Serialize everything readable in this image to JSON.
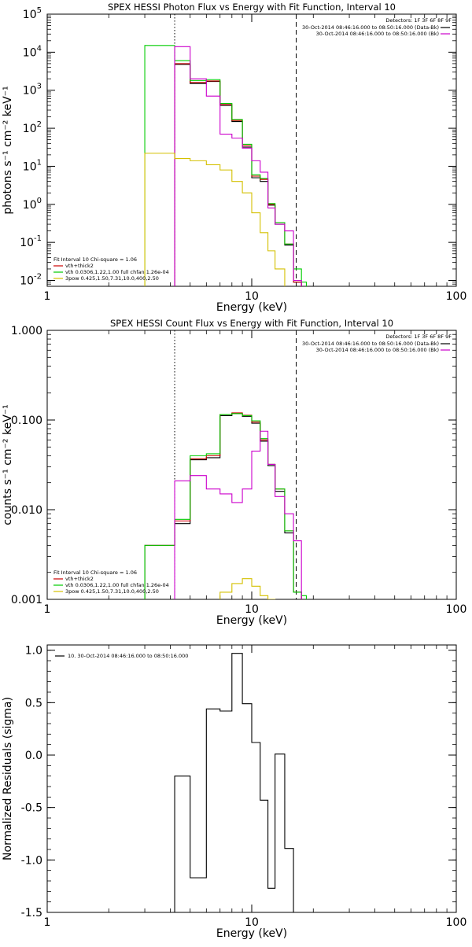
{
  "chart_data": [
    {
      "type": "line",
      "title": "SPEX HESSI Photon Flux vs Energy with Fit Function, Interval 10",
      "xlabel": "Energy (keV)",
      "ylabel": "photons s⁻¹ cm⁻² keV⁻¹",
      "xscale": "log",
      "yscale": "log",
      "xlim": [
        1,
        100
      ],
      "ylim": [
        0.007,
        100000
      ],
      "xticks": [
        {
          "v": 1,
          "label": "1"
        },
        {
          "v": 10,
          "label": "10"
        },
        {
          "v": 100,
          "label": "100"
        }
      ],
      "yticks": [
        {
          "v": 0.01,
          "base": "10",
          "exp": "-2"
        },
        {
          "v": 0.1,
          "base": "10",
          "exp": "-1"
        },
        {
          "v": 1,
          "base": "10",
          "exp": "0"
        },
        {
          "v": 10,
          "base": "10",
          "exp": "1"
        },
        {
          "v": 100,
          "base": "10",
          "exp": "2"
        },
        {
          "v": 1000,
          "base": "10",
          "exp": "3"
        },
        {
          "v": 10000,
          "base": "10",
          "exp": "4"
        },
        {
          "v": 100000,
          "base": "10",
          "exp": "5"
        }
      ],
      "vlines": [
        {
          "x": 4.2,
          "style": "dotted"
        },
        {
          "x": 16.5,
          "style": "dashed"
        }
      ],
      "detectors": "Detectors: 1F 3F 6F 8F 9F",
      "legend_top": [
        {
          "text": "30-Oct-2014 08:46:16.000 to 08:50:16.000 (Data-Bk)",
          "color": "#000000"
        },
        {
          "text": "30-Oct-2014 08:46:16.000 to 08:50:16.000 (Bk)",
          "color": "#cc00cc"
        }
      ],
      "fit_header": "Fit Interval 10    Chi-square = 1.06",
      "legend_bottom": [
        {
          "text": "vth+thick2",
          "color": "#cc0000"
        },
        {
          "text": "vth 0.0306,1.22,1.00   full chfan 1.26e-04",
          "color": "#00cc00"
        },
        {
          "text": "3pow 0.425,1.50,7.31,10.0,400,2.50",
          "color": "#d4c000"
        }
      ],
      "series": [
        {
          "color": "#000000",
          "edges": [
            4.2,
            5.0,
            6.0,
            7.0,
            8.0,
            9.0,
            10.0,
            11.0,
            12.0,
            13.0,
            14.5,
            16.0,
            17.5
          ],
          "values": [
            4800,
            1500,
            1700,
            400,
            150,
            32,
            5.0,
            4.0,
            0.95,
            0.3,
            0.085,
            0.009
          ],
          "x0": 4.2
        },
        {
          "color": "#cc0000",
          "edges": [
            4.2,
            5.0,
            6.0,
            7.0,
            8.0,
            9.0,
            10.0,
            11.0,
            12.0,
            13.0,
            14.5,
            16.0,
            17.5
          ],
          "values": [
            5000,
            1600,
            1750,
            420,
            160,
            35,
            5.5,
            4.5,
            1.0,
            0.33,
            0.09,
            0.009
          ],
          "x0": 4.2
        },
        {
          "color": "#00cc00",
          "edges": [
            3.0,
            4.2,
            5.0,
            6.0,
            7.0,
            8.0,
            9.0,
            10.0,
            11.0,
            12.0,
            13.0,
            14.5,
            16.0,
            17.5,
            18.5
          ],
          "values": [
            15000,
            6000,
            1800,
            1900,
            450,
            170,
            38,
            6.0,
            4.8,
            1.05,
            0.33,
            0.09,
            0.02,
            0.009
          ],
          "x0": 3.0
        },
        {
          "color": "#cc00cc",
          "edges": [
            4.2,
            5.0,
            6.0,
            7.0,
            8.0,
            9.0,
            10.0,
            11.0,
            12.0,
            13.0,
            14.5,
            16.0,
            17.5
          ],
          "values": [
            14000,
            2000,
            700,
            70,
            55,
            30,
            14,
            7.0,
            0.8,
            0.3,
            0.2,
            0.01
          ],
          "x0": 4.2
        },
        {
          "color": "#d4c000",
          "edges": [
            3.0,
            4.2,
            5.0,
            6.0,
            7.0,
            8.0,
            9.0,
            10.0,
            11.0,
            12.0,
            13.0,
            14.5
          ],
          "values": [
            22,
            16,
            14,
            11,
            8.0,
            4.0,
            2.0,
            0.6,
            0.18,
            0.06,
            0.02
          ],
          "x0": 3.0
        }
      ]
    },
    {
      "type": "line",
      "title": "SPEX HESSI Count Flux vs Energy with Fit Function, Interval 10",
      "xlabel": "Energy (keV)",
      "ylabel": "counts s⁻¹ cm⁻² keV⁻¹",
      "xscale": "log",
      "yscale": "log",
      "xlim": [
        1,
        100
      ],
      "ylim": [
        0.001,
        1.0
      ],
      "xticks": [
        {
          "v": 1,
          "label": "1"
        },
        {
          "v": 10,
          "label": "10"
        },
        {
          "v": 100,
          "label": "100"
        }
      ],
      "yticks": [
        {
          "v": 0.001,
          "label": "0.001"
        },
        {
          "v": 0.01,
          "label": "0.010"
        },
        {
          "v": 0.1,
          "label": "0.100"
        },
        {
          "v": 1.0,
          "label": "1.000"
        }
      ],
      "vlines": [
        {
          "x": 4.2,
          "style": "dotted"
        },
        {
          "x": 16.5,
          "style": "dashed"
        }
      ],
      "detectors": "Detectors: 1F 3F 6F 8F 9F",
      "legend_top": [
        {
          "text": "30-Oct-2014 08:46:16.000 to 08:50:16.000 (Data-Bk)",
          "color": "#000000"
        },
        {
          "text": "30-Oct-2014 08:46:16.000 to 08:50:16.000 (Bk)",
          "color": "#cc00cc"
        }
      ],
      "fit_header": "Fit Interval 10    Chi-square = 1.06",
      "legend_bottom": [
        {
          "text": "vth+thick2",
          "color": "#cc0000"
        },
        {
          "text": "vth 0.0306,1.22,1.00   full chfan 1.26e-04",
          "color": "#00cc00"
        },
        {
          "text": "3pow 0.425,1.50,7.31,10.0,400,2.50",
          "color": "#d4c000"
        }
      ],
      "series": [
        {
          "color": "#000000",
          "edges": [
            3.0,
            4.2,
            5.0,
            6.0,
            7.0,
            8.0,
            9.0,
            10.0,
            11.0,
            12.0,
            13.0,
            14.5,
            16.0,
            17.5
          ],
          "values": [
            0.004,
            0.007,
            0.036,
            0.038,
            0.112,
            0.118,
            0.11,
            0.092,
            0.058,
            0.031,
            0.016,
            0.0055,
            0.0012
          ]
        },
        {
          "color": "#cc0000",
          "edges": [
            3.0,
            4.2,
            5.0,
            6.0,
            7.0,
            8.0,
            9.0,
            10.0,
            11.0,
            12.0,
            13.0,
            14.5,
            16.0,
            17.5
          ],
          "values": [
            0.004,
            0.0075,
            0.037,
            0.04,
            0.115,
            0.12,
            0.113,
            0.095,
            0.06,
            0.032,
            0.017,
            0.0058,
            0.0012
          ]
        },
        {
          "color": "#00cc00",
          "edges": [
            3.0,
            4.2,
            5.0,
            6.0,
            7.0,
            8.0,
            9.0,
            10.0,
            11.0,
            12.0,
            13.0,
            14.5,
            16.0,
            17.5,
            18.5
          ],
          "values": [
            0.004,
            0.0078,
            0.04,
            0.042,
            0.115,
            0.118,
            0.112,
            0.098,
            0.062,
            0.032,
            0.017,
            0.0058,
            0.0012,
            0.0011
          ]
        },
        {
          "color": "#cc00cc",
          "edges": [
            4.2,
            5.0,
            6.0,
            7.0,
            8.0,
            9.0,
            10.0,
            11.0,
            12.0,
            13.0,
            14.5,
            16.0,
            17.5
          ],
          "values": [
            0.021,
            0.024,
            0.017,
            0.015,
            0.012,
            0.017,
            0.045,
            0.075,
            0.032,
            0.014,
            0.009,
            0.0045
          ]
        },
        {
          "color": "#d4c000",
          "edges": [
            7.0,
            8.0,
            9.0,
            10.0,
            11.0,
            12.0,
            13.0
          ],
          "values": [
            0.0012,
            0.0015,
            0.0017,
            0.0014,
            0.0011,
            0.001
          ]
        }
      ]
    },
    {
      "type": "line",
      "title": "",
      "xlabel": "Energy (keV)",
      "ylabel": "Normalized Residuals (sigma)",
      "xscale": "log",
      "yscale": "linear",
      "xlim": [
        1,
        100
      ],
      "ylim": [
        -1.5,
        1.05
      ],
      "xticks": [
        {
          "v": 1,
          "label": "1"
        },
        {
          "v": 10,
          "label": "10"
        },
        {
          "v": 100,
          "label": "100"
        }
      ],
      "yticks": [
        {
          "v": 1.0,
          "label": "1.0"
        },
        {
          "v": 0.5,
          "label": "0.5"
        },
        {
          "v": 0.0,
          "label": "0.0"
        },
        {
          "v": -0.5,
          "label": "-0.5"
        },
        {
          "v": -1.0,
          "label": "-1.0"
        },
        {
          "v": -1.5,
          "label": "-1.5"
        }
      ],
      "legend": "10. 30-Oct-2014 08:46:16.000 to 08:50:16.000",
      "series": [
        {
          "color": "#000000",
          "edges": [
            4.2,
            5.0,
            6.0,
            7.0,
            8.0,
            9.0,
            10.0,
            11.0,
            12.0,
            13.0,
            14.5,
            16.0
          ],
          "values": [
            -0.2,
            -1.17,
            0.44,
            0.42,
            0.97,
            0.49,
            0.12,
            -0.43,
            -1.27,
            0.01,
            -0.89
          ]
        }
      ]
    }
  ]
}
